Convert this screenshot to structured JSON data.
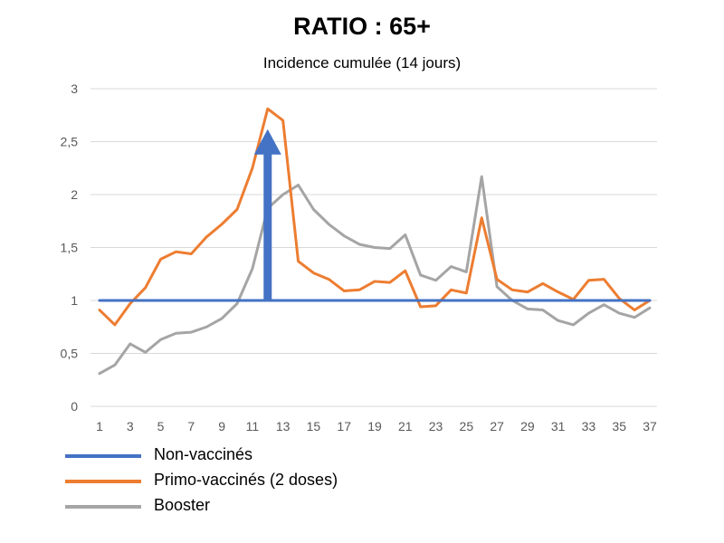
{
  "chart_data": {
    "type": "line",
    "title": "RATIO : 65+",
    "subtitle": "Incidence cumulée (14 jours)",
    "xlabel": "",
    "ylabel": "",
    "x": [
      1,
      2,
      3,
      4,
      5,
      6,
      7,
      8,
      9,
      10,
      11,
      12,
      13,
      14,
      15,
      16,
      17,
      18,
      19,
      20,
      21,
      22,
      23,
      24,
      25,
      26,
      27,
      28,
      29,
      30,
      31,
      32,
      33,
      34,
      35,
      36,
      37
    ],
    "x_tick_labels": [
      "1",
      "3",
      "5",
      "7",
      "9",
      "11",
      "13",
      "15",
      "17",
      "19",
      "21",
      "23",
      "25",
      "27",
      "29",
      "31",
      "33",
      "35",
      "37"
    ],
    "y_tick_labels": [
      "0",
      "0,5",
      "1",
      "1,5",
      "2",
      "2,5",
      "3"
    ],
    "ylim": [
      0,
      3
    ],
    "grid": "horizontal",
    "legend_position": "bottom-left",
    "series": [
      {
        "name": "Non-vaccinés",
        "color": "#4472C4",
        "values": [
          1,
          1,
          1,
          1,
          1,
          1,
          1,
          1,
          1,
          1,
          1,
          1,
          1,
          1,
          1,
          1,
          1,
          1,
          1,
          1,
          1,
          1,
          1,
          1,
          1,
          1,
          1,
          1,
          1,
          1,
          1,
          1,
          1,
          1,
          1,
          1,
          1
        ]
      },
      {
        "name": "Primo-vaccinés (2 doses)",
        "color": "#ED7D31",
        "values": [
          0.91,
          0.77,
          0.97,
          1.12,
          1.39,
          1.46,
          1.44,
          1.6,
          1.72,
          1.86,
          2.25,
          2.81,
          2.7,
          1.37,
          1.26,
          1.2,
          1.09,
          1.1,
          1.18,
          1.17,
          1.28,
          0.94,
          0.95,
          1.1,
          1.07,
          1.78,
          1.2,
          1.1,
          1.08,
          1.16,
          1.08,
          1.01,
          1.19,
          1.2,
          1.02,
          0.91,
          1.0
        ]
      },
      {
        "name": "Booster",
        "color": "#A5A5A5",
        "values": [
          0.31,
          0.39,
          0.59,
          0.51,
          0.63,
          0.69,
          0.7,
          0.75,
          0.83,
          0.97,
          1.3,
          1.87,
          2.0,
          2.09,
          1.86,
          1.72,
          1.61,
          1.53,
          1.5,
          1.49,
          1.62,
          1.24,
          1.19,
          1.32,
          1.27,
          2.17,
          1.13,
          1.0,
          0.92,
          0.91,
          0.81,
          0.77,
          0.88,
          0.96,
          0.88,
          0.84,
          0.93
        ]
      }
    ],
    "annotations": [
      {
        "type": "arrow",
        "x": 12,
        "from": 1,
        "to": 2.6,
        "color": "#4472C4"
      }
    ]
  }
}
